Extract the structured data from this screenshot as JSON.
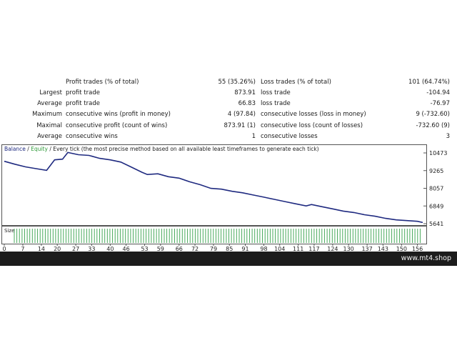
{
  "stats": [
    {
      "label": "",
      "desc": "Profit trades (% of total)",
      "value": "55 (35.26%)",
      "desc2": "Loss trades (% of total)",
      "value2": "101 (64.74%)"
    },
    {
      "label": "Largest",
      "desc": "profit trade",
      "value": "873.91",
      "desc2": "loss trade",
      "value2": "-104.94"
    },
    {
      "label": "Average",
      "desc": "profit trade",
      "value": "66.83",
      "desc2": "loss trade",
      "value2": "-76.97"
    },
    {
      "label": "Maximum",
      "desc": "consecutive wins (profit in money)",
      "value": "4 (97.84)",
      "desc2": "consecutive losses (loss in money)",
      "value2": "9 (-732.60)"
    },
    {
      "label": "Maximal",
      "desc": "consecutive profit (count of wins)",
      "value": "873.91 (1)",
      "desc2": "consecutive loss (count of losses)",
      "value2": "-732.60 (9)"
    },
    {
      "label": "Average",
      "desc": "consecutive wins",
      "value": "1",
      "desc2": "consecutive losses",
      "value2": "3"
    }
  ],
  "legend": {
    "balance": "Balance",
    "sep1": " / ",
    "equity": "Equity",
    "sep2": " / ",
    "note": "Every tick (the most precise method based on all available least timeframes to generate each tick)"
  },
  "colors": {
    "balance": "#1f2a80",
    "equity": "#2f9a3a",
    "size_bar": "#35a04a",
    "footer_bg": "#1c1c1c"
  },
  "chart_data": {
    "type": "line",
    "title": "",
    "xlabel": "",
    "ylabel": "",
    "x_ticks": [
      "0",
      "7",
      "14",
      "20",
      "27",
      "33",
      "40",
      "46",
      "53",
      "59",
      "66",
      "72",
      "79",
      "85",
      "91",
      "98",
      "104",
      "111",
      "117",
      "124",
      "130",
      "137",
      "143",
      "150",
      "156"
    ],
    "y_ticks": [
      "10473",
      "9265",
      "8057",
      "6849",
      "5641"
    ],
    "ylim": [
      5641,
      10473
    ],
    "xlim": [
      0,
      158
    ],
    "series": [
      {
        "name": "Balance",
        "x": [
          0,
          4,
          8,
          12,
          16,
          19,
          22,
          24,
          28,
          32,
          36,
          40,
          44,
          48,
          52,
          54,
          58,
          62,
          66,
          70,
          74,
          78,
          82,
          86,
          90,
          94,
          98,
          102,
          106,
          110,
          114,
          116,
          120,
          124,
          128,
          132,
          136,
          140,
          144,
          148,
          152,
          156,
          158
        ],
        "y": [
          9900,
          9700,
          9520,
          9400,
          9280,
          10000,
          10050,
          10500,
          10350,
          10300,
          10100,
          10000,
          9850,
          9500,
          9150,
          9000,
          9050,
          8850,
          8750,
          8500,
          8300,
          8050,
          8000,
          7850,
          7750,
          7600,
          7450,
          7300,
          7150,
          7000,
          6850,
          6950,
          6800,
          6650,
          6500,
          6400,
          6250,
          6150,
          6000,
          5900,
          5850,
          5800,
          5720
        ]
      }
    ],
    "size_series": {
      "name": "Size",
      "count": 158
    }
  },
  "size_label": "Size",
  "site": "www.mt4.shop"
}
